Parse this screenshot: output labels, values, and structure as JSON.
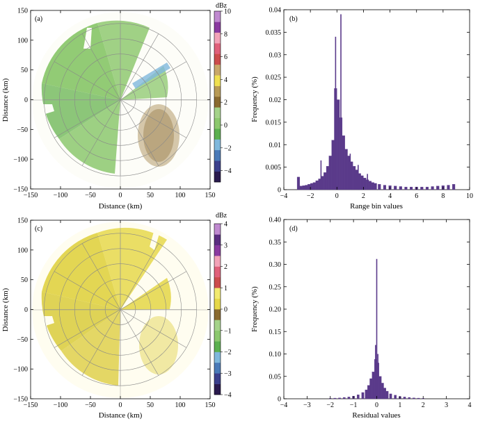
{
  "chart_data": [
    {
      "id": "a",
      "panel_label": "(a)",
      "type": "heatmap",
      "subtype": "radar-ppi",
      "xlabel": "Distance (km)",
      "ylabel": "Distance (km)",
      "xlim": [
        -150,
        150
      ],
      "ylim": [
        -150,
        150
      ],
      "xticks": [
        -150,
        -100,
        -50,
        0,
        50,
        100,
        150
      ],
      "yticks": [
        150,
        100,
        50,
        0,
        -50,
        -100,
        -150
      ],
      "xtick_labels": [
        "−150",
        "−100",
        "−50",
        "0",
        "50",
        "100",
        "150"
      ],
      "ytick_labels": [
        "150",
        "100",
        "50",
        "0",
        "−50",
        "−100",
        "−150"
      ],
      "range_rings_km": [
        30,
        60,
        90,
        120,
        150
      ],
      "radial_spokes_deg": 30,
      "colorbar": {
        "unit": "dBz",
        "ticks": [
          10,
          8,
          6,
          4,
          2,
          0,
          -2,
          -4
        ],
        "tick_labels": [
          "10",
          "8",
          "6",
          "4",
          "2",
          "0",
          "−2",
          "−4"
        ],
        "min": -5,
        "max": 10,
        "colors": [
          "#2a1a4e",
          "#3b3f8c",
          "#4a7ab8",
          "#7fb8dc",
          "#5bb04f",
          "#8cc86e",
          "#a5d38a",
          "#8a6a30",
          "#b89a55",
          "#f0e050",
          "#c9a86a",
          "#cc4c4c",
          "#e0607a",
          "#f3a3b8",
          "#8a3aa0",
          "#c08ad0"
        ]
      },
      "dominant_value_dbz": 1
    },
    {
      "id": "b",
      "panel_label": "(b)",
      "type": "bar",
      "subtype": "histogram",
      "xlabel": "Range  bin  values",
      "ylabel": "Frequency (%)",
      "xlim": [
        -4,
        10
      ],
      "ylim": [
        0,
        0.04
      ],
      "xticks": [
        -4,
        -2,
        0,
        2,
        4,
        6,
        8,
        10
      ],
      "yticks": [
        0,
        0.005,
        0.01,
        0.015,
        0.02,
        0.025,
        0.03,
        0.035,
        0.04
      ],
      "xtick_labels": [
        "−4",
        "−2",
        "0",
        "2",
        "4",
        "6",
        "8",
        "10"
      ],
      "ytick_labels": [
        "0",
        "0.005",
        "0.01",
        "0.015",
        "0.02",
        "0.025",
        "0.03",
        "0.035",
        "0.04"
      ],
      "bar_color": "#5a3a8a",
      "x": [
        -2.9,
        -2.7,
        -2.5,
        -2.3,
        -2.1,
        -1.9,
        -1.7,
        -1.5,
        -1.3,
        -1.1,
        -0.9,
        -0.7,
        -0.5,
        -0.3,
        -0.1,
        0.1,
        0.3,
        0.5,
        0.7,
        0.9,
        1.1,
        1.3,
        1.5,
        1.7,
        1.9,
        2.1,
        2.3,
        2.5,
        2.7,
        2.9,
        3.2,
        3.6,
        4.0,
        4.4,
        4.8,
        5.2,
        5.6,
        6.0,
        6.4,
        6.8,
        7.2,
        7.6,
        8.0,
        8.4,
        8.8
      ],
      "values": [
        0.0028,
        0.0008,
        0.0009,
        0.001,
        0.0012,
        0.0014,
        0.0016,
        0.002,
        0.0024,
        0.003,
        0.0038,
        0.0052,
        0.0075,
        0.011,
        0.0225,
        0.02,
        0.016,
        0.012,
        0.009,
        0.0075,
        0.0062,
        0.0052,
        0.0044,
        0.0036,
        0.0031,
        0.0026,
        0.0022,
        0.0019,
        0.0016,
        0.0014,
        0.0012,
        0.001,
        0.0009,
        0.0008,
        0.0007,
        0.0006,
        0.0006,
        0.0006,
        0.0006,
        0.0006,
        0.0007,
        0.0008,
        0.0009,
        0.001,
        0.0012
      ],
      "spikes": [
        {
          "x": -0.1,
          "value": 0.034
        },
        {
          "x": 0.3,
          "value": 0.039
        },
        {
          "x": -1.2,
          "value": 0.0065
        },
        {
          "x": 1.0,
          "value": 0.008
        },
        {
          "x": 1.6,
          "value": 0.0055
        },
        {
          "x": 2.3,
          "value": 0.0035
        },
        {
          "x": -2.9,
          "value": 0.0028
        }
      ]
    },
    {
      "id": "c",
      "panel_label": "(c)",
      "type": "heatmap",
      "subtype": "radar-ppi",
      "xlabel": "Distance (km)",
      "ylabel": "Distance (km)",
      "xlim": [
        -150,
        150
      ],
      "ylim": [
        -150,
        150
      ],
      "xticks": [
        -150,
        -100,
        -50,
        0,
        50,
        100,
        150
      ],
      "yticks": [
        150,
        100,
        50,
        0,
        -50,
        -100,
        -150
      ],
      "xtick_labels": [
        "−150",
        "−100",
        "−50",
        "0",
        "50",
        "100",
        "150"
      ],
      "ytick_labels": [
        "150",
        "100",
        "50",
        "0",
        "−50",
        "−100",
        "−150"
      ],
      "range_rings_km": [
        30,
        60,
        90,
        120,
        150
      ],
      "radial_spokes_deg": 30,
      "colorbar": {
        "unit": "dBz",
        "ticks": [
          4,
          3,
          2,
          1,
          0,
          -1,
          -2,
          -3,
          -4
        ],
        "tick_labels": [
          "4",
          "3",
          "2",
          "1",
          "0",
          "−1",
          "−2",
          "−3",
          "−4"
        ],
        "min": -4,
        "max": 4,
        "colors": [
          "#2a1a4e",
          "#3b3f8c",
          "#4a7ab8",
          "#7fb8dc",
          "#5bb04f",
          "#8cc86e",
          "#a5d38a",
          "#8a6a30",
          "#e6d84a",
          "#f2ea70",
          "#cc4c4c",
          "#e0607a",
          "#f3a3b8",
          "#8a3aa0",
          "#5a2d80",
          "#c08ad0"
        ]
      },
      "dominant_value_dbz": 0
    },
    {
      "id": "d",
      "panel_label": "(d)",
      "type": "bar",
      "subtype": "histogram",
      "xlabel": "Residual  values",
      "ylabel": "Frequency (%)",
      "xlim": [
        -4,
        4
      ],
      "ylim": [
        0,
        0.4
      ],
      "xticks": [
        -4,
        -3,
        -2,
        -1,
        0,
        1,
        2,
        3,
        4
      ],
      "yticks": [
        0,
        0.05,
        0.1,
        0.15,
        0.2,
        0.25,
        0.3,
        0.35,
        0.4
      ],
      "xtick_labels": [
        "−4",
        "−3",
        "−2",
        "−1",
        "0",
        "1",
        "2",
        "3",
        "4"
      ],
      "ytick_labels": [
        "0",
        "0.05",
        "0.10",
        "0.15",
        "0.20",
        "0.25",
        "0.30",
        "0.35",
        "0.40"
      ],
      "bar_color": "#5a3a8a",
      "x": [
        -2.0,
        -1.8,
        -1.6,
        -1.4,
        -1.2,
        -1.0,
        -0.8,
        -0.6,
        -0.45,
        -0.35,
        -0.25,
        -0.15,
        -0.05,
        0.05,
        0.15,
        0.25,
        0.35,
        0.45,
        0.6,
        0.8,
        1.0,
        1.2,
        1.4,
        1.6,
        1.8,
        2.0
      ],
      "values": [
        0.001,
        0.0015,
        0.002,
        0.003,
        0.004,
        0.006,
        0.009,
        0.014,
        0.02,
        0.03,
        0.045,
        0.06,
        0.088,
        0.08,
        0.05,
        0.035,
        0.024,
        0.017,
        0.011,
        0.008,
        0.005,
        0.004,
        0.003,
        0.002,
        0.0015,
        0.001
      ],
      "spikes": [
        {
          "x": 0.0,
          "value": 0.312
        },
        {
          "x": -0.05,
          "value": 0.12
        },
        {
          "x": 0.05,
          "value": 0.1
        }
      ]
    }
  ]
}
